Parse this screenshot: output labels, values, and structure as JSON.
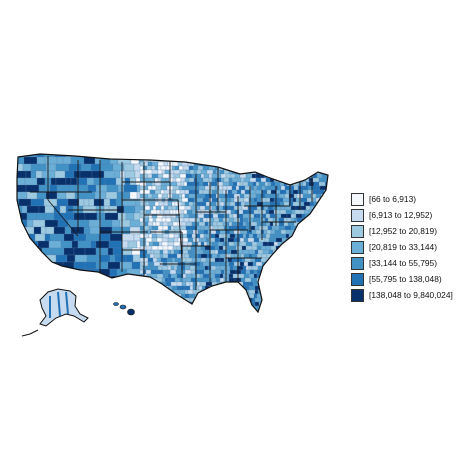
{
  "map": {
    "region": "United States counties",
    "palette": [
      "#f4f8fd",
      "#c6dbef",
      "#9ecae1",
      "#6baed6",
      "#4292c6",
      "#2171b5",
      "#08306b"
    ],
    "border_color": "#1a1a1a"
  },
  "legend": {
    "items": [
      {
        "label": "[66 to 6,913)",
        "color": "#f4f8fd"
      },
      {
        "label": "[6,913 to 12,952)",
        "color": "#c6dbef"
      },
      {
        "label": "[12,952 to 20,819)",
        "color": "#9ecae1"
      },
      {
        "label": "[20,819 to 33,144)",
        "color": "#6baed6"
      },
      {
        "label": "[33,144 to 55,795)",
        "color": "#4292c6"
      },
      {
        "label": "[55,795 to 138,048)",
        "color": "#2171b5"
      },
      {
        "label": "[138,048 to 9,840,024]",
        "color": "#08306b"
      }
    ]
  }
}
